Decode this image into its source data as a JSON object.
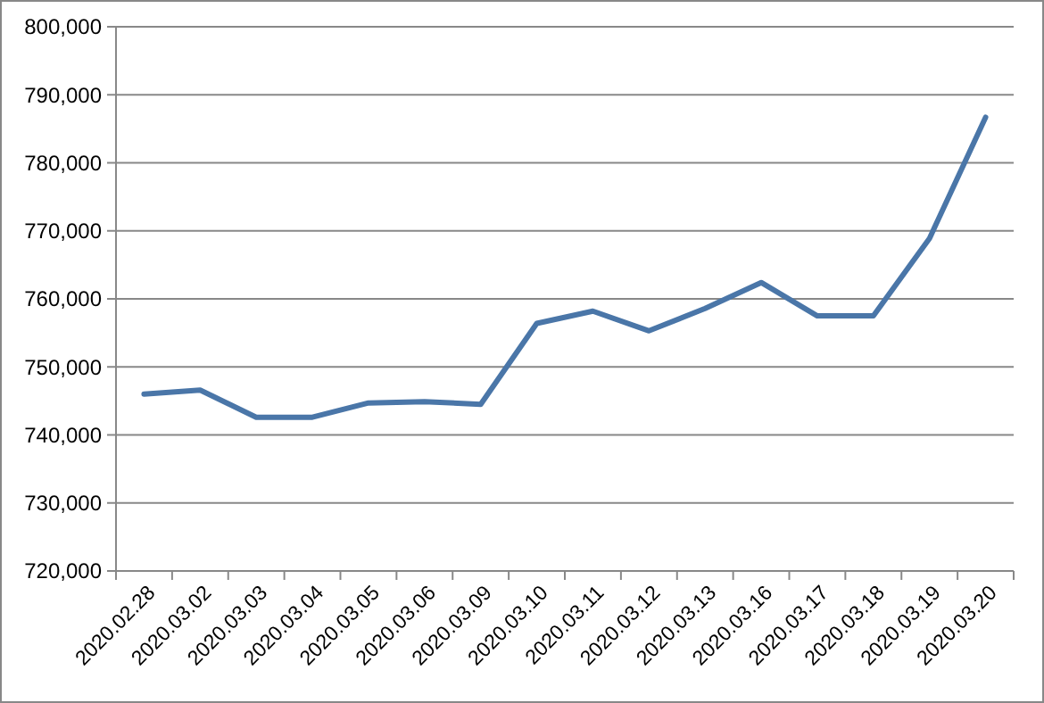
{
  "chart_data": {
    "type": "line",
    "categories": [
      "2020.02.28",
      "2020.03.02",
      "2020.03.03",
      "2020.03.04",
      "2020.03.05",
      "2020.03.06",
      "2020.03.09",
      "2020.03.10",
      "2020.03.11",
      "2020.03.12",
      "2020.03.13",
      "2020.03.16",
      "2020.03.17",
      "2020.03.18",
      "2020.03.19",
      "2020.03.20"
    ],
    "series": [
      {
        "color": "#4a76a8",
        "values": [
          746000,
          746600,
          742600,
          742600,
          744700,
          744900,
          744500,
          756400,
          758200,
          755300,
          758600,
          762400,
          757500,
          757500,
          768900,
          786700
        ]
      }
    ],
    "ylim": [
      720000,
      800000
    ],
    "yticks": [
      {
        "value": 720000,
        "label": "720,000"
      },
      {
        "value": 730000,
        "label": "730,000"
      },
      {
        "value": 740000,
        "label": "740,000"
      },
      {
        "value": 750000,
        "label": "750,000"
      },
      {
        "value": 760000,
        "label": "760,000"
      },
      {
        "value": 770000,
        "label": "770,000"
      },
      {
        "value": 780000,
        "label": "780,000"
      },
      {
        "value": 790000,
        "label": "790,000"
      },
      {
        "value": 800000,
        "label": "800,000"
      }
    ],
    "grid": "y",
    "marker": "none",
    "line_style": "solid"
  }
}
